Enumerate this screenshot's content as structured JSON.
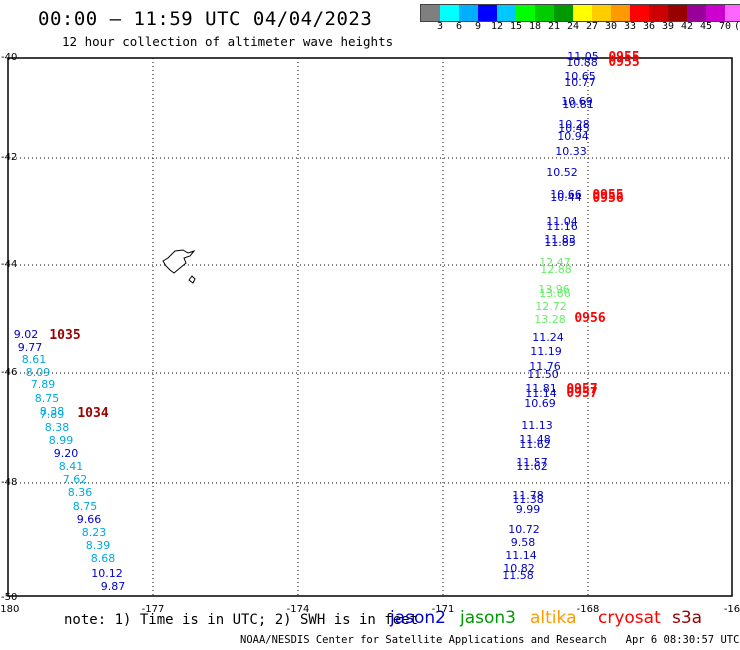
{
  "header": {
    "title": "00:00 — 11:59 UTC 04/04/2023",
    "subtitle": "12 hour collection of altimeter wave heights"
  },
  "color_scale": {
    "colors": [
      "#7f7f7f",
      "#00ffff",
      "#00b0ff",
      "#0000ff",
      "#00c8ff",
      "#00ff00",
      "#00cc00",
      "#009900",
      "#ffff00",
      "#ffcc00",
      "#ff9900",
      "#ff0000",
      "#cc0000",
      "#990000",
      "#990099",
      "#cc00cc",
      "#ff66ff",
      "#000000"
    ],
    "labels": [
      "3",
      "6",
      "9",
      "12",
      "15",
      "18",
      "21",
      "24",
      "27",
      "30",
      "33",
      "36",
      "39",
      "42",
      "45",
      "70"
    ],
    "unit": "(ft)"
  },
  "map": {
    "lon_ticks": [
      "-180",
      "-177",
      "-174",
      "-171",
      "-168",
      "-16"
    ],
    "lat_ticks": [
      "-40",
      "-42",
      "-44",
      "-46",
      "-48",
      "-50"
    ],
    "lon_range": [
      -180,
      -165
    ],
    "lat_range": [
      -50,
      -40
    ],
    "grid": "dotted"
  },
  "observations": {
    "east_track": [
      {
        "v": "11.05",
        "c": "#0000cc"
      },
      {
        "v": "10.88",
        "c": "#0000cc"
      },
      {
        "v": "10.65",
        "c": "#0000cc"
      },
      {
        "v": "10.77",
        "c": "#0000cc"
      },
      {
        "v": "10.69",
        "c": "#0000cc"
      },
      {
        "v": "10.81",
        "c": "#0000cc"
      },
      {
        "v": "10.28",
        "c": "#0000cc"
      },
      {
        "v": "10.45",
        "c": "#0000cc"
      },
      {
        "v": "10.94",
        "c": "#0000cc"
      },
      {
        "v": "10.33",
        "c": "#0000cc"
      },
      {
        "v": "10.52",
        "c": "#0000cc"
      },
      {
        "v": "10.66",
        "c": "#0000cc"
      },
      {
        "v": "10.44",
        "c": "#0000cc"
      },
      {
        "v": "11.04",
        "c": "#0000cc"
      },
      {
        "v": "11.16",
        "c": "#0000cc"
      },
      {
        "v": "11.83",
        "c": "#0000cc"
      },
      {
        "v": "11.85",
        "c": "#0000cc"
      },
      {
        "v": "12.47",
        "c": "#66ee66"
      },
      {
        "v": "12.88",
        "c": "#66ee66"
      },
      {
        "v": "13.96",
        "c": "#66ee66"
      },
      {
        "v": "13.86",
        "c": "#66ee66"
      },
      {
        "v": "12.72",
        "c": "#66ee66"
      },
      {
        "v": "13.28",
        "c": "#66ee66"
      },
      {
        "v": "11.24",
        "c": "#0000cc"
      },
      {
        "v": "11.19",
        "c": "#0000cc"
      },
      {
        "v": "11.76",
        "c": "#0000cc"
      },
      {
        "v": "11.50",
        "c": "#0000cc"
      },
      {
        "v": "11.81",
        "c": "#0000cc"
      },
      {
        "v": "11.14",
        "c": "#0000cc"
      },
      {
        "v": "10.69",
        "c": "#0000cc"
      },
      {
        "v": "11.13",
        "c": "#0000cc"
      },
      {
        "v": "11.48",
        "c": "#0000cc"
      },
      {
        "v": "11.62",
        "c": "#0000cc"
      },
      {
        "v": "11.57",
        "c": "#0000cc"
      },
      {
        "v": "11.62",
        "c": "#0000cc"
      },
      {
        "v": "11.78",
        "c": "#0000cc"
      },
      {
        "v": "11.38",
        "c": "#0000cc"
      },
      {
        "v": "9.99",
        "c": "#0000cc"
      },
      {
        "v": "10.72",
        "c": "#0000cc"
      },
      {
        "v": "9.58",
        "c": "#0000cc"
      },
      {
        "v": "11.14",
        "c": "#0000cc"
      },
      {
        "v": "10.82",
        "c": "#0000cc"
      },
      {
        "v": "11.58",
        "c": "#0000cc"
      }
    ],
    "west_track": [
      {
        "v": "9.02",
        "c": "#0000cc"
      },
      {
        "v": "9.77",
        "c": "#0000cc"
      },
      {
        "v": "8.61",
        "c": "#00aadd"
      },
      {
        "v": "8.09",
        "c": "#00aadd"
      },
      {
        "v": "7.89",
        "c": "#00aadd"
      },
      {
        "v": "8.75",
        "c": "#00aadd"
      },
      {
        "v": "8.38",
        "c": "#00aadd"
      },
      {
        "v": "7.89",
        "c": "#00aadd"
      },
      {
        "v": "8.38",
        "c": "#00aadd"
      },
      {
        "v": "8.99",
        "c": "#00aadd"
      },
      {
        "v": "9.20",
        "c": "#0000cc"
      },
      {
        "v": "8.41",
        "c": "#00aadd"
      },
      {
        "v": "7.62",
        "c": "#00aadd"
      },
      {
        "v": "8.36",
        "c": "#00aadd"
      },
      {
        "v": "8.75",
        "c": "#00aadd"
      },
      {
        "v": "9.66",
        "c": "#0000cc"
      },
      {
        "v": "8.23",
        "c": "#00aadd"
      },
      {
        "v": "8.39",
        "c": "#00aadd"
      },
      {
        "v": "8.68",
        "c": "#00aadd"
      },
      {
        "v": "10.12",
        "c": "#0000cc"
      },
      {
        "v": "9.87",
        "c": "#0000cc"
      }
    ],
    "times_red": [
      "0955",
      "0955",
      "0955",
      "0956",
      "0956",
      "0957",
      "0957"
    ],
    "times_dark": [
      "1035",
      "1034"
    ]
  },
  "footer": {
    "note": "note:  1) Time is in UTC; 2) SWH is in feet",
    "satellites": [
      {
        "name": "jason2",
        "color": "#0000cc"
      },
      {
        "name": "jason3",
        "color": "#009900"
      },
      {
        "name": "altika",
        "color": "#ff9900"
      },
      {
        "name": "cryosat",
        "color": "#ff0000"
      },
      {
        "name": "s3a",
        "color": "#990000"
      }
    ],
    "credit": "NOAA/NESDIS Center for Satellite Applications and Research",
    "timestamp": "Apr  6 08:30:57 UTC 2023"
  }
}
